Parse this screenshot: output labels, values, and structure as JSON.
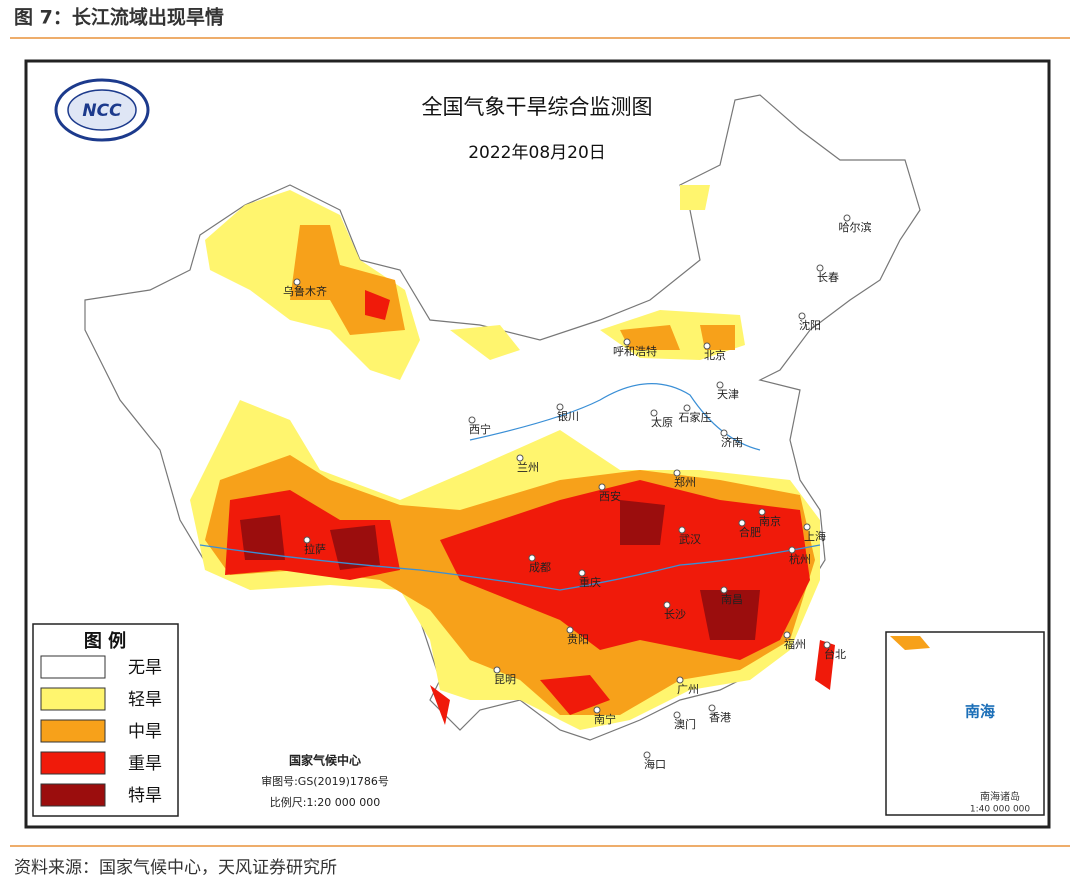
{
  "header": {
    "title": "图 7：长江流域出现旱情"
  },
  "map": {
    "logo_text": "NCC",
    "title": "全国气象干旱综合监测图",
    "date": "2022年08月20日",
    "cities": [
      "乌鲁木齐",
      "呼和浩特",
      "北京",
      "哈尔滨",
      "长春",
      "沈阳",
      "天津",
      "石家庄",
      "太原",
      "济南",
      "银川",
      "西宁",
      "兰州",
      "西安",
      "郑州",
      "拉萨",
      "成都",
      "重庆",
      "武汉",
      "合肥",
      "南京",
      "上海",
      "杭州",
      "长沙",
      "南昌",
      "贵阳",
      "昆明",
      "南宁",
      "广州",
      "澳门",
      "香港",
      "海口",
      "福州",
      "台北"
    ],
    "legend": {
      "title": "图 例",
      "items": [
        {
          "label": "无旱",
          "color": "#ffffff"
        },
        {
          "label": "轻旱",
          "color": "#fff56e"
        },
        {
          "label": "中旱",
          "color": "#f7a11a"
        },
        {
          "label": "重旱",
          "color": "#f01a0a"
        },
        {
          "label": "特旱",
          "color": "#9b0d0d"
        }
      ]
    },
    "credits": [
      "国家气候中心",
      "审图号:GS(2019)1786号",
      "比例尺:1:20 000 000"
    ],
    "inset": {
      "sea": "南海",
      "islands": "南海诸岛",
      "scale": "1:40 000 000"
    }
  },
  "footer": {
    "source": "资料来源：国家气候中心，天风证券研究所"
  }
}
